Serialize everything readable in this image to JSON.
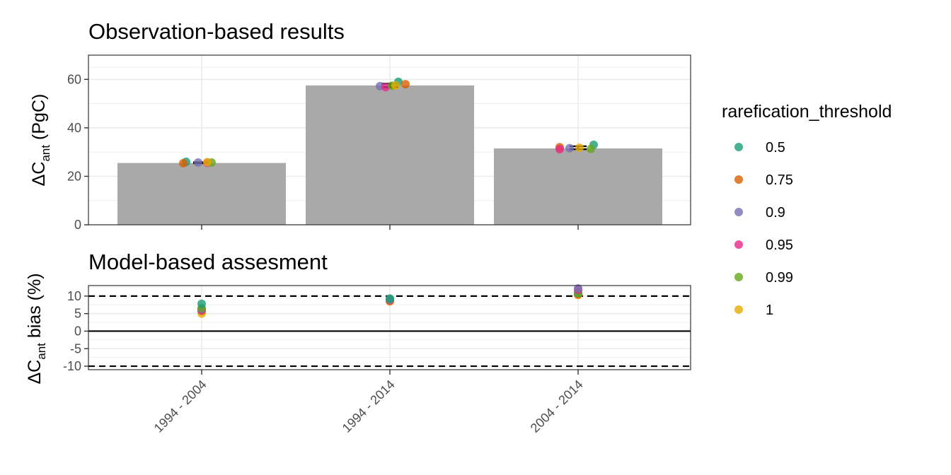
{
  "chart_data": [
    {
      "type": "bar",
      "title": "Observation-based results",
      "ylabel": {
        "prefix": "ΔC",
        "subscript": "ant",
        "suffix": " (PgC)"
      },
      "ylim": [
        0,
        70
      ],
      "yticks": [
        "0",
        "20",
        "40",
        "60"
      ],
      "ytick_values": [
        0,
        20,
        40,
        60
      ],
      "categories": [
        "1994 - 2004",
        "1994 - 2014",
        "2004 - 2014"
      ],
      "values": [
        25.5,
        57.5,
        31.5
      ],
      "error_bars": [
        {
          "low": 25.4,
          "high": 25.8
        },
        {
          "low": 56.8,
          "high": 58.2
        },
        {
          "low": 31.2,
          "high": 32.4
        }
      ],
      "points": [
        [
          {
            "threshold": "0.5",
            "value": 26.0
          },
          {
            "threshold": "0.75",
            "value": 25.4
          },
          {
            "threshold": "0.9",
            "value": 25.7
          },
          {
            "threshold": "0.95",
            "value": 25.6
          },
          {
            "threshold": "0.99",
            "value": 25.7
          },
          {
            "threshold": "1",
            "value": 25.8
          }
        ],
        [
          {
            "threshold": "0.5",
            "value": 59.0
          },
          {
            "threshold": "0.75",
            "value": 58.0
          },
          {
            "threshold": "0.9",
            "value": 57.2
          },
          {
            "threshold": "0.95",
            "value": 56.8
          },
          {
            "threshold": "0.99",
            "value": 57.4
          },
          {
            "threshold": "1",
            "value": 57.5
          }
        ],
        [
          {
            "threshold": "0.5",
            "value": 33.0
          },
          {
            "threshold": "0.75",
            "value": 32.0
          },
          {
            "threshold": "0.9",
            "value": 31.6
          },
          {
            "threshold": "0.95",
            "value": 31.2
          },
          {
            "threshold": "0.99",
            "value": 31.3
          },
          {
            "threshold": "1",
            "value": 31.8
          }
        ]
      ],
      "grid": true
    },
    {
      "type": "scatter",
      "title": "Model-based assesment",
      "ylabel": {
        "prefix": "ΔC",
        "subscript": "ant",
        "suffix": " bias (%)"
      },
      "ylim": [
        -11,
        13
      ],
      "yticks": [
        "10",
        "5",
        "0",
        "-5",
        "-10"
      ],
      "ytick_values": [
        10,
        5,
        0,
        -5,
        -10
      ],
      "xlabels": [
        "1994 - 2004",
        "1994 - 2014",
        "2004 - 2014"
      ],
      "reference_lines": {
        "solid": [
          0
        ],
        "dashed": [
          10,
          -10
        ]
      },
      "points": [
        [
          {
            "threshold": "1",
            "value": 5.0
          },
          {
            "threshold": "0.75",
            "value": 5.8
          },
          {
            "threshold": "0.95",
            "value": 6.0
          },
          {
            "threshold": "0.9",
            "value": 6.3
          },
          {
            "threshold": "0.99",
            "value": 6.6
          },
          {
            "threshold": "0.5",
            "value": 7.8
          }
        ],
        [
          {
            "threshold": "0.75",
            "value": 8.5
          },
          {
            "threshold": "1",
            "value": 8.7
          },
          {
            "threshold": "0.95",
            "value": 8.8
          },
          {
            "threshold": "0.99",
            "value": 9.0
          },
          {
            "threshold": "0.9",
            "value": 9.1
          },
          {
            "threshold": "0.5",
            "value": 9.3
          }
        ],
        [
          {
            "threshold": "1",
            "value": 10.3
          },
          {
            "threshold": "0.75",
            "value": 10.5
          },
          {
            "threshold": "0.5",
            "value": 10.8
          },
          {
            "threshold": "0.99",
            "value": 11.0
          },
          {
            "threshold": "0.95",
            "value": 11.8
          },
          {
            "threshold": "0.9",
            "value": 12.2
          }
        ]
      ],
      "grid": true
    }
  ],
  "legend": {
    "title": "rarefication_threshold",
    "placement": "right",
    "items": [
      {
        "label": "0.5",
        "color": "#1b9e77"
      },
      {
        "label": "0.75",
        "color": "#d95f02"
      },
      {
        "label": "0.9",
        "color": "#7570b3"
      },
      {
        "label": "0.95",
        "color": "#e7298a"
      },
      {
        "label": "0.99",
        "color": "#66a61e"
      },
      {
        "label": "1",
        "color": "#e6ab02"
      }
    ]
  },
  "colors": {
    "bar": "#a9a9a9",
    "grid": "#ebebeb",
    "frame": "#333333"
  }
}
